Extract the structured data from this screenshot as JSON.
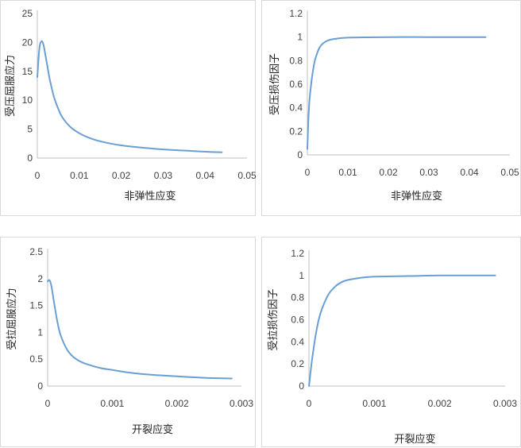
{
  "chart_data": [
    {
      "type": "line",
      "xlabel": "非弹性应变",
      "ylabel": "受压屈服应力",
      "xlim": [
        0,
        0.05
      ],
      "ylim": [
        0,
        25
      ],
      "xticks": [
        "0",
        "0.01",
        "0.02",
        "0.03",
        "0.04",
        "0.05"
      ],
      "yticks": [
        "0",
        "5",
        "10",
        "15",
        "20",
        "25"
      ],
      "series": [
        {
          "x": [
            0,
            0.0005,
            0.001,
            0.0015,
            0.002,
            0.003,
            0.004,
            0.005,
            0.006,
            0.008,
            0.01,
            0.012,
            0.015,
            0.02,
            0.025,
            0.03,
            0.035,
            0.04,
            0.044
          ],
          "y": [
            14.0,
            19.0,
            20.2,
            19.5,
            17.5,
            13.5,
            10.5,
            8.5,
            7.0,
            5.3,
            4.3,
            3.6,
            2.9,
            2.2,
            1.8,
            1.5,
            1.3,
            1.1,
            1.0
          ]
        }
      ]
    },
    {
      "type": "line",
      "xlabel": "非弹性应变",
      "ylabel": "受压损伤因子",
      "xlim": [
        0,
        0.05
      ],
      "ylim": [
        0,
        1.2
      ],
      "xticks": [
        "0",
        "0.01",
        "0.02",
        "0.03",
        "0.04",
        "0.05"
      ],
      "yticks": [
        "0",
        "0.2",
        "0.4",
        "0.6",
        "0.8",
        "1",
        "1.2"
      ],
      "series": [
        {
          "x": [
            0,
            0.0002,
            0.0005,
            0.001,
            0.0015,
            0.002,
            0.003,
            0.004,
            0.005,
            0.006,
            0.008,
            0.01,
            0.015,
            0.02,
            0.03,
            0.04,
            0.044
          ],
          "y": [
            0.05,
            0.25,
            0.45,
            0.62,
            0.74,
            0.82,
            0.91,
            0.95,
            0.97,
            0.98,
            0.99,
            0.995,
            0.998,
            1.0,
            1.0,
            1.0,
            1.0
          ]
        }
      ]
    },
    {
      "type": "line",
      "xlabel": "开裂应变",
      "ylabel": "受拉屈服应力",
      "xlim": [
        0,
        0.003
      ],
      "ylim": [
        0,
        2.5
      ],
      "xticks": [
        "0",
        "0.001",
        "0.002",
        "0.003"
      ],
      "yticks": [
        "0",
        "0.5",
        "1",
        "1.5",
        "2",
        "2.5"
      ],
      "series": [
        {
          "x": [
            0,
            3e-05,
            6e-05,
            0.0001,
            0.00015,
            0.0002,
            0.0003,
            0.0004,
            0.0005,
            0.0006,
            0.0008,
            0.001,
            0.0012,
            0.0015,
            0.002,
            0.0025,
            0.00285
          ],
          "y": [
            1.95,
            1.97,
            1.85,
            1.55,
            1.2,
            0.95,
            0.68,
            0.54,
            0.46,
            0.41,
            0.34,
            0.3,
            0.26,
            0.22,
            0.18,
            0.15,
            0.14
          ]
        }
      ]
    },
    {
      "type": "line",
      "xlabel": "开裂应变",
      "ylabel": "受拉损伤因子",
      "xlim": [
        0,
        0.003
      ],
      "ylim": [
        0,
        1.2
      ],
      "xticks": [
        "0",
        "0.001",
        "0.002",
        "0.003"
      ],
      "yticks": [
        "0",
        "0.2",
        "0.4",
        "0.6",
        "0.8",
        "1",
        "1.2"
      ],
      "series": [
        {
          "x": [
            0,
            2e-05,
            5e-05,
            0.0001,
            0.00015,
            0.0002,
            0.0003,
            0.0004,
            0.0005,
            0.0006,
            0.0008,
            0.001,
            0.0015,
            0.002,
            0.0025,
            0.00285
          ],
          "y": [
            0,
            0.1,
            0.25,
            0.45,
            0.6,
            0.7,
            0.83,
            0.9,
            0.94,
            0.96,
            0.98,
            0.99,
            0.995,
            1.0,
            1.0,
            1.0
          ]
        }
      ]
    }
  ],
  "colors": {
    "line": "#6a9fd4",
    "axis": "#bfbfbf",
    "text": "#404040"
  }
}
